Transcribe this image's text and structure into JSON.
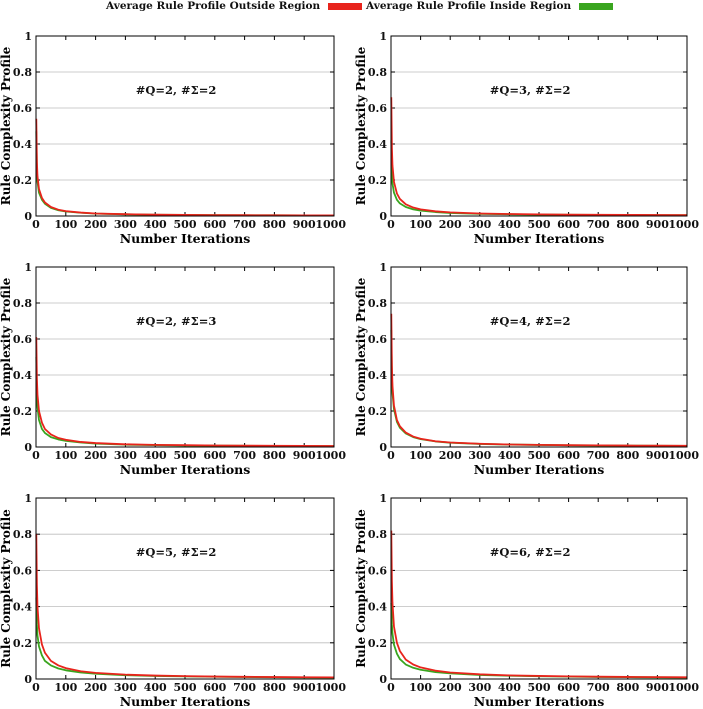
{
  "legend": {
    "outside_label": "Average Rule Profile Outside Region",
    "inside_label": "Average Rule Profile Inside Region"
  },
  "colors": {
    "outside": "#e8241c",
    "inside": "#3aa51f",
    "grid": "#bdbdbd",
    "axis": "#000000"
  },
  "chart_data": [
    {
      "type": "line",
      "annotation": "#Q=2, #Σ=2",
      "xlabel": "Number Iterations",
      "ylabel": "Rule Complexity Profile",
      "xlim": [
        0,
        1000
      ],
      "ylim": [
        0,
        1
      ],
      "xticks": [
        0,
        100,
        200,
        300,
        400,
        500,
        600,
        700,
        800,
        900,
        1000
      ],
      "yticks": [
        0,
        0.2,
        0.4,
        0.6,
        0.8,
        1
      ],
      "grid": "horizontal",
      "series": [
        {
          "name": "Average Rule Profile Outside Region",
          "x": [
            1,
            3,
            5,
            10,
            20,
            30,
            50,
            75,
            100,
            150,
            200,
            300,
            400,
            500,
            600,
            700,
            800,
            900,
            1000
          ],
          "y": [
            0.54,
            0.3,
            0.22,
            0.15,
            0.1,
            0.075,
            0.05,
            0.035,
            0.027,
            0.019,
            0.014,
            0.01,
            0.0075,
            0.006,
            0.005,
            0.0045,
            0.004,
            0.0035,
            0.003
          ]
        },
        {
          "name": "Average Rule Profile Inside Region",
          "x": [
            1,
            3,
            5,
            10,
            20,
            30,
            50,
            75,
            100,
            150,
            200,
            300,
            400,
            500,
            600,
            700,
            800,
            900,
            1000
          ],
          "y": [
            0.47,
            0.26,
            0.19,
            0.13,
            0.09,
            0.068,
            0.045,
            0.032,
            0.025,
            0.018,
            0.013,
            0.0095,
            0.007,
            0.0058,
            0.0048,
            0.0043,
            0.0038,
            0.0033,
            0.003
          ]
        }
      ]
    },
    {
      "type": "line",
      "annotation": "#Q=3, #Σ=2",
      "xlabel": "Number Iterations",
      "ylabel": "Rule Complexity Profile",
      "xlim": [
        0,
        1000
      ],
      "ylim": [
        0,
        1
      ],
      "xticks": [
        0,
        100,
        200,
        300,
        400,
        500,
        600,
        700,
        800,
        900,
        1000
      ],
      "yticks": [
        0,
        0.2,
        0.4,
        0.6,
        0.8,
        1
      ],
      "grid": "horizontal",
      "series": [
        {
          "name": "Average Rule Profile Outside Region",
          "x": [
            1,
            3,
            5,
            10,
            20,
            30,
            50,
            75,
            100,
            150,
            200,
            300,
            400,
            500,
            600,
            700,
            800,
            900,
            1000
          ],
          "y": [
            0.66,
            0.38,
            0.28,
            0.19,
            0.125,
            0.095,
            0.065,
            0.047,
            0.037,
            0.026,
            0.02,
            0.014,
            0.011,
            0.009,
            0.0078,
            0.0068,
            0.006,
            0.0055,
            0.005
          ]
        },
        {
          "name": "Average Rule Profile Inside Region",
          "x": [
            1,
            3,
            5,
            10,
            20,
            30,
            50,
            75,
            100,
            150,
            200,
            300,
            400,
            500,
            600,
            700,
            800,
            900,
            1000
          ],
          "y": [
            0.42,
            0.24,
            0.18,
            0.13,
            0.09,
            0.07,
            0.05,
            0.037,
            0.03,
            0.022,
            0.017,
            0.012,
            0.0095,
            0.008,
            0.0068,
            0.006,
            0.0053,
            0.0048,
            0.0044
          ]
        }
      ]
    },
    {
      "type": "line",
      "annotation": "#Q=2, #Σ=3",
      "xlabel": "Number Iterations",
      "ylabel": "Rule Complexity Profile",
      "xlim": [
        0,
        1000
      ],
      "ylim": [
        0,
        1
      ],
      "xticks": [
        0,
        100,
        200,
        300,
        400,
        500,
        600,
        700,
        800,
        900,
        1000
      ],
      "yticks": [
        0,
        0.2,
        0.4,
        0.6,
        0.8,
        1
      ],
      "grid": "horizontal",
      "series": [
        {
          "name": "Average Rule Profile Outside Region",
          "x": [
            1,
            3,
            5,
            10,
            20,
            30,
            50,
            75,
            100,
            150,
            200,
            300,
            400,
            500,
            600,
            700,
            800,
            900,
            1000
          ],
          "y": [
            0.61,
            0.38,
            0.29,
            0.2,
            0.135,
            0.1,
            0.07,
            0.05,
            0.04,
            0.028,
            0.022,
            0.015,
            0.012,
            0.01,
            0.0085,
            0.0075,
            0.0066,
            0.006,
            0.0055
          ]
        },
        {
          "name": "Average Rule Profile Inside Region",
          "x": [
            1,
            3,
            5,
            10,
            20,
            30,
            50,
            75,
            100,
            150,
            200,
            300,
            400,
            500,
            600,
            700,
            800,
            900,
            1000
          ],
          "y": [
            0.5,
            0.3,
            0.22,
            0.15,
            0.1,
            0.078,
            0.055,
            0.042,
            0.034,
            0.025,
            0.019,
            0.013,
            0.0105,
            0.0088,
            0.0075,
            0.0066,
            0.0059,
            0.0053,
            0.0049
          ]
        }
      ]
    },
    {
      "type": "line",
      "annotation": "#Q=4, #Σ=2",
      "xlabel": "Number Iterations",
      "ylabel": "Rule Complexity Profile",
      "xlim": [
        0,
        1000
      ],
      "ylim": [
        0,
        1
      ],
      "xticks": [
        0,
        100,
        200,
        300,
        400,
        500,
        600,
        700,
        800,
        900,
        1000
      ],
      "yticks": [
        0,
        0.2,
        0.4,
        0.6,
        0.8,
        1
      ],
      "grid": "horizontal",
      "series": [
        {
          "name": "Average Rule Profile Outside Region",
          "x": [
            1,
            3,
            5,
            10,
            20,
            30,
            50,
            75,
            100,
            150,
            200,
            300,
            400,
            500,
            600,
            700,
            800,
            900,
            1000
          ],
          "y": [
            0.74,
            0.45,
            0.34,
            0.23,
            0.15,
            0.115,
            0.08,
            0.058,
            0.046,
            0.032,
            0.025,
            0.018,
            0.014,
            0.012,
            0.01,
            0.009,
            0.008,
            0.0072,
            0.0066
          ]
        },
        {
          "name": "Average Rule Profile Inside Region",
          "x": [
            1,
            3,
            5,
            10,
            20,
            30,
            50,
            75,
            100,
            150,
            200,
            300,
            400,
            500,
            600,
            700,
            800,
            900,
            1000
          ],
          "y": [
            0.65,
            0.4,
            0.3,
            0.21,
            0.14,
            0.107,
            0.075,
            0.055,
            0.044,
            0.031,
            0.024,
            0.017,
            0.0135,
            0.0115,
            0.0098,
            0.0087,
            0.0078,
            0.007,
            0.0064
          ]
        }
      ]
    },
    {
      "type": "line",
      "annotation": "#Q=5, #Σ=2",
      "xlabel": "Number Iterations",
      "ylabel": "Rule Complexity Profile",
      "xlim": [
        0,
        1000
      ],
      "ylim": [
        0,
        1
      ],
      "xticks": [
        0,
        100,
        200,
        300,
        400,
        500,
        600,
        700,
        800,
        900,
        1000
      ],
      "yticks": [
        0,
        0.2,
        0.4,
        0.6,
        0.8,
        1
      ],
      "grid": "horizontal",
      "series": [
        {
          "name": "Average Rule Profile Outside Region",
          "x": [
            1,
            3,
            5,
            10,
            20,
            30,
            50,
            75,
            100,
            150,
            200,
            300,
            400,
            500,
            600,
            700,
            800,
            900,
            1000
          ],
          "y": [
            0.8,
            0.52,
            0.4,
            0.28,
            0.19,
            0.145,
            0.1,
            0.075,
            0.06,
            0.043,
            0.034,
            0.024,
            0.019,
            0.016,
            0.0135,
            0.012,
            0.0107,
            0.0097,
            0.0088
          ]
        },
        {
          "name": "Average Rule Profile Inside Region",
          "x": [
            1,
            3,
            5,
            10,
            20,
            30,
            50,
            75,
            100,
            150,
            200,
            300,
            400,
            500,
            600,
            700,
            800,
            900,
            1000
          ],
          "y": [
            0.45,
            0.3,
            0.24,
            0.18,
            0.13,
            0.1,
            0.075,
            0.058,
            0.048,
            0.036,
            0.029,
            0.021,
            0.017,
            0.0143,
            0.0123,
            0.011,
            0.0098,
            0.009,
            0.0082
          ]
        }
      ]
    },
    {
      "type": "line",
      "annotation": "#Q=6, #Σ=2",
      "xlabel": "Number Iterations",
      "ylabel": "Rule Complexity Profile",
      "xlim": [
        0,
        1000
      ],
      "ylim": [
        0,
        1
      ],
      "xticks": [
        0,
        100,
        200,
        300,
        400,
        500,
        600,
        700,
        800,
        900,
        1000
      ],
      "yticks": [
        0,
        0.2,
        0.4,
        0.6,
        0.8,
        1
      ],
      "grid": "horizontal",
      "series": [
        {
          "name": "Average Rule Profile Outside Region",
          "x": [
            1,
            3,
            5,
            10,
            20,
            30,
            50,
            75,
            100,
            150,
            200,
            300,
            400,
            500,
            600,
            700,
            800,
            900,
            1000
          ],
          "y": [
            0.82,
            0.54,
            0.42,
            0.29,
            0.2,
            0.155,
            0.107,
            0.08,
            0.064,
            0.046,
            0.036,
            0.026,
            0.02,
            0.017,
            0.0145,
            0.0128,
            0.0114,
            0.0103,
            0.0094
          ]
        },
        {
          "name": "Average Rule Profile Inside Region",
          "x": [
            1,
            3,
            5,
            10,
            20,
            30,
            50,
            75,
            100,
            150,
            200,
            300,
            400,
            500,
            600,
            700,
            800,
            900,
            1000
          ],
          "y": [
            0.42,
            0.3,
            0.25,
            0.19,
            0.14,
            0.11,
            0.08,
            0.062,
            0.051,
            0.038,
            0.031,
            0.022,
            0.018,
            0.015,
            0.013,
            0.0115,
            0.0103,
            0.0094,
            0.0086
          ]
        }
      ]
    }
  ]
}
